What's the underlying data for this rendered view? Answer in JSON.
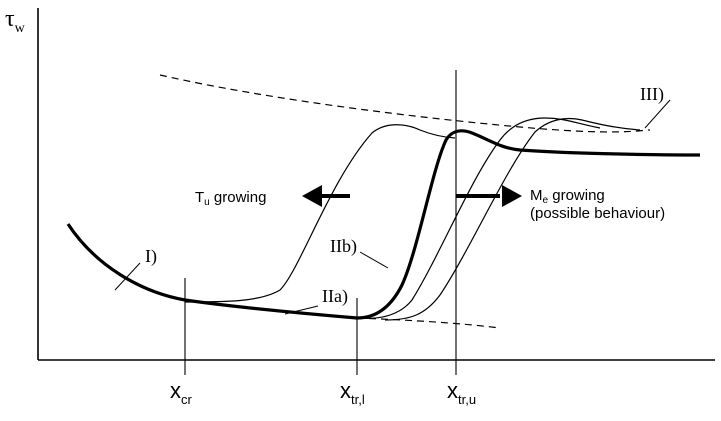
{
  "axis": {
    "y_symbol": "τ",
    "y_subscript": "w"
  },
  "x_markers": [
    {
      "base": "x",
      "sub": "cr"
    },
    {
      "base": "x",
      "sub": "tr,l"
    },
    {
      "base": "x",
      "sub": "tr,u"
    }
  ],
  "curve_labels": {
    "laminar": "I)",
    "transitional_a": "IIa)",
    "transitional_b": "IIb)",
    "turbulent": "III)"
  },
  "arrows": {
    "left": {
      "base": "T",
      "sub": "u",
      "rest": " growing"
    },
    "right": {
      "base": "M",
      "sub": "e",
      "rest": " growing",
      "note": "(possible behaviour)"
    }
  }
}
